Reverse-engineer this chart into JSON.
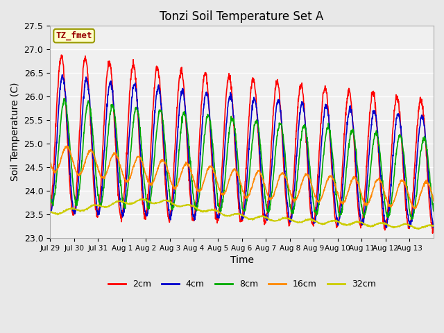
{
  "title": "Tonzi Soil Temperature Set A",
  "xlabel": "Time",
  "ylabel": "Soil Temperature (C)",
  "ylim": [
    23.0,
    27.5
  ],
  "annotation_text": "TZ_fmet",
  "annotation_box_color": "#ffffcc",
  "annotation_text_color": "#990000",
  "annotation_border_color": "#999900",
  "fig_bg_color": "#e8e8e8",
  "plot_bg_color": "#f0f0f0",
  "line_colors": {
    "2cm": "#ff0000",
    "4cm": "#0000cc",
    "8cm": "#00aa00",
    "16cm": "#ff8800",
    "32cm": "#cccc00"
  },
  "tick_labels": [
    "Jul 29",
    "Jul 30",
    "Jul 31",
    "Aug 1",
    "Aug 2",
    "Aug 3",
    "Aug 4",
    "Aug 5",
    "Aug 6",
    "Aug 7",
    "Aug 8",
    "Aug 9",
    "Aug 10",
    "Aug 11",
    "Aug 12",
    "Aug 13"
  ],
  "yticks": [
    23.0,
    23.5,
    24.0,
    24.5,
    25.0,
    25.5,
    26.0,
    26.5,
    27.0,
    27.5
  ],
  "legend_labels": [
    "2cm",
    "4cm",
    "8cm",
    "16cm",
    "32cm"
  ]
}
